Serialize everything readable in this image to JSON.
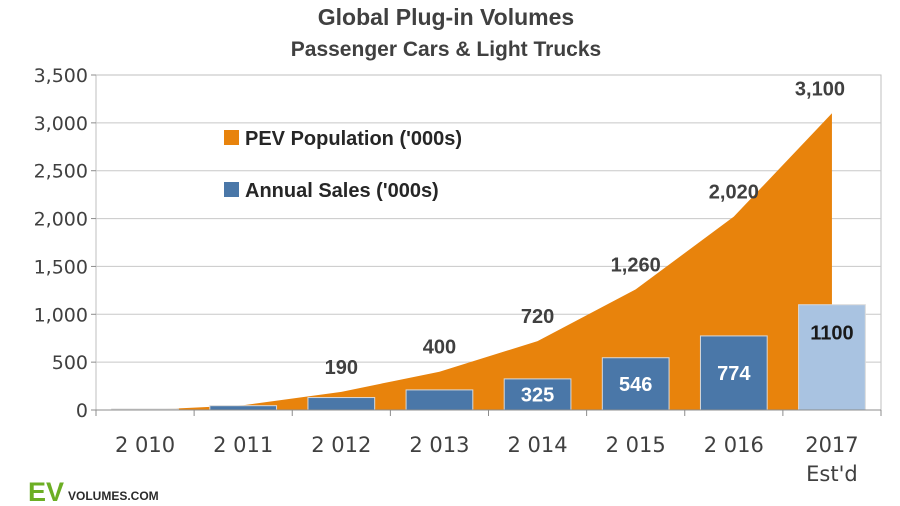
{
  "chart_data": {
    "type": "area",
    "title": "Global Plug-in Volumes",
    "subtitle": "Passenger Cars & Light Trucks",
    "categories": [
      "2 010",
      "2 011",
      "2 012",
      "2 013",
      "2 014",
      "2 015",
      "2 016",
      "2017"
    ],
    "category_sublabels": [
      "",
      "",
      "",
      "",
      "",
      "",
      "",
      "Est'd"
    ],
    "ylim": [
      0,
      3500
    ],
    "yticks": [
      0,
      500,
      1000,
      1500,
      2000,
      2500,
      3000,
      3500
    ],
    "ytick_labels": [
      "0",
      "500",
      "1,000",
      "1,500",
      "2,000",
      "2,500",
      "3,000",
      "3,500"
    ],
    "grid": true,
    "legend_position": "top-left",
    "series": [
      {
        "name": "PEV Population ('000s)",
        "kind": "area",
        "color": "#e8830c",
        "values": [
          0,
          50,
          190,
          400,
          720,
          1260,
          2020,
          3100
        ],
        "labels": [
          "",
          "",
          "190",
          "400",
          "720",
          "1,260",
          "2,020",
          "3,100"
        ]
      },
      {
        "name": "Annual Sales ('000s)",
        "kind": "bar",
        "color": "#4a77a8",
        "estimate_color": "#a9c3e1",
        "values": [
          10,
          45,
          130,
          210,
          325,
          546,
          774,
          1100
        ],
        "labels": [
          "",
          "",
          "",
          "",
          "325",
          "546",
          "774",
          "1100"
        ]
      }
    ]
  },
  "logo": {
    "ev": "EV",
    "volumes": "VOLUMES.COM"
  }
}
